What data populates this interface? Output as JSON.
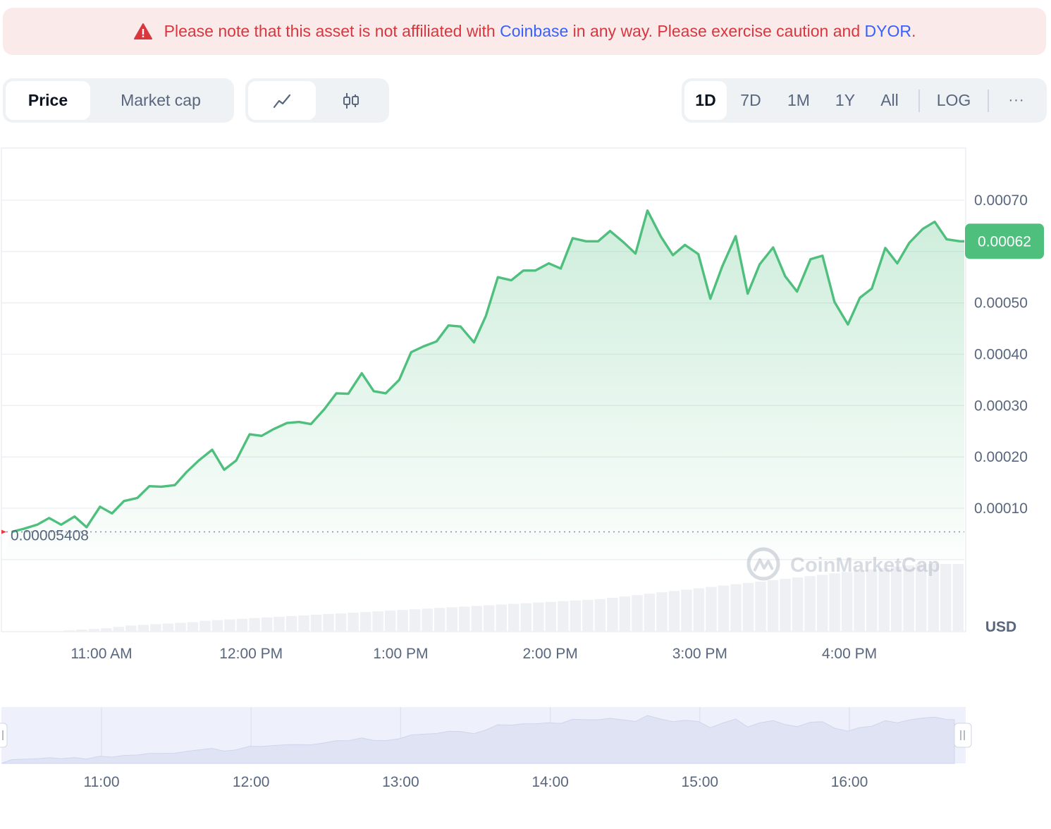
{
  "notice": {
    "text_before": "Please note that this asset is not affiliated with ",
    "link1": "Coinbase",
    "text_middle": " in any way. Please exercise caution and ",
    "link2": "DYOR",
    "text_after": ".",
    "icon": "warning-triangle-icon"
  },
  "metric_tabs": [
    {
      "label": "Price",
      "active": true
    },
    {
      "label": "Market cap",
      "active": false
    }
  ],
  "chart_type_toggle": [
    {
      "icon": "line-chart-icon",
      "active": true
    },
    {
      "icon": "candlestick-icon",
      "active": false
    }
  ],
  "range_tabs": [
    {
      "label": "1D",
      "active": true
    },
    {
      "label": "7D",
      "active": false
    },
    {
      "label": "1M",
      "active": false
    },
    {
      "label": "1Y",
      "active": false
    },
    {
      "label": "All",
      "active": false
    }
  ],
  "log_label": "LOG",
  "more_label": "···",
  "watermark": "CoinMarketCap",
  "currency": "USD",
  "colors": {
    "line": "#4fbf7e",
    "current_badge": "#4fbf7e",
    "open_marker": "#ea3943",
    "volume": "#eef0f4",
    "navigator_fill": "#e3e7f6",
    "navigator_bg": "#eef1fb"
  },
  "chart_data": {
    "type": "line",
    "y_ticks": [
      "0.00010",
      "0.00020",
      "0.00030",
      "0.00040",
      "0.00050",
      "0.00070"
    ],
    "y_tick_values": [
      0.0001,
      0.0002,
      0.0003,
      0.0004,
      0.0005,
      0.0007
    ],
    "ylim": [
      -0.0001,
      0.0008
    ],
    "x_ticks": [
      "11:00 AM",
      "12:00 PM",
      "1:00 PM",
      "2:00 PM",
      "3:00 PM",
      "4:00 PM"
    ],
    "navigator_ticks": [
      "11:00",
      "12:00",
      "13:00",
      "14:00",
      "15:00",
      "16:00"
    ],
    "current_price_label": "0.00062",
    "current_price": 0.00062,
    "open_price_label": "0.00005408",
    "open_price": 5.408e-05,
    "time_range_hours": [
      10.4,
      16.8
    ],
    "series": [
      {
        "x": [
          10.4,
          10.48,
          10.57,
          10.65,
          10.73,
          10.82,
          10.9,
          10.99,
          11.07,
          11.15,
          11.24,
          11.32,
          11.4,
          11.49,
          11.57,
          11.65,
          11.74,
          11.82,
          11.9,
          11.99,
          12.07,
          12.15,
          12.24,
          12.32,
          12.4,
          12.49,
          12.57,
          12.65,
          12.74,
          12.82,
          12.9,
          12.99,
          13.07,
          13.15,
          13.24,
          13.32,
          13.4,
          13.49,
          13.57,
          13.65,
          13.74,
          13.82,
          13.9,
          13.99,
          14.07,
          14.15,
          14.24,
          14.32,
          14.4,
          14.49,
          14.57,
          14.65,
          14.74,
          14.82,
          14.9,
          14.99,
          15.07,
          15.15,
          15.24,
          15.32,
          15.4,
          15.49,
          15.57,
          15.65,
          15.74,
          15.82,
          15.9,
          15.99,
          16.07,
          16.15,
          16.24,
          16.32,
          16.4,
          16.49,
          16.57,
          16.65,
          16.74,
          16.8
        ],
        "values": [
          5.4e-05,
          6e-05,
          6.8e-05,
          8.1e-05,
          6.8e-05,
          8.4e-05,
          6.3e-05,
          0.000103,
          9e-05,
          0.000114,
          0.00012,
          0.000143,
          0.000142,
          0.000145,
          0.000171,
          0.000193,
          0.000214,
          0.000175,
          0.000193,
          0.000244,
          0.000241,
          0.000254,
          0.000266,
          0.000268,
          0.000264,
          0.000293,
          0.000324,
          0.000323,
          0.000363,
          0.000328,
          0.000324,
          0.00035,
          0.000404,
          0.000415,
          0.000425,
          0.000456,
          0.000454,
          0.000423,
          0.000475,
          0.00055,
          0.000544,
          0.000563,
          0.000563,
          0.000577,
          0.000567,
          0.000626,
          0.00062,
          0.00062,
          0.00064,
          0.000618,
          0.000596,
          0.00068,
          0.000629,
          0.000593,
          0.000613,
          0.000595,
          0.000508,
          0.000571,
          0.00063,
          0.000518,
          0.000575,
          0.000608,
          0.000552,
          0.000522,
          0.000585,
          0.000592,
          0.000502,
          0.000458,
          0.00051,
          0.000528,
          0.000607,
          0.000577,
          0.000617,
          0.000644,
          0.000658,
          0.000624,
          0.00062,
          0.00062
        ]
      }
    ],
    "volume": [
      0,
      0,
      0,
      0,
      0,
      0.02,
      0.03,
      0.04,
      0.05,
      0.07,
      0.09,
      0.1,
      0.11,
      0.12,
      0.13,
      0.14,
      0.16,
      0.17,
      0.18,
      0.19,
      0.2,
      0.21,
      0.22,
      0.23,
      0.24,
      0.25,
      0.26,
      0.27,
      0.28,
      0.29,
      0.3,
      0.31,
      0.32,
      0.33,
      0.34,
      0.35,
      0.36,
      0.37,
      0.38,
      0.39,
      0.4,
      0.41,
      0.42,
      0.43,
      0.44,
      0.45,
      0.46,
      0.47,
      0.48,
      0.5,
      0.52,
      0.54,
      0.56,
      0.58,
      0.6,
      0.62,
      0.64,
      0.66,
      0.68,
      0.7,
      0.72,
      0.74,
      0.76,
      0.78,
      0.8,
      0.82,
      0.84,
      0.86,
      0.88,
      0.9,
      0.92,
      0.94,
      0.96,
      0.98,
      1.0,
      1.0,
      1.0,
      1.0
    ],
    "grid": true,
    "legend": "none"
  }
}
